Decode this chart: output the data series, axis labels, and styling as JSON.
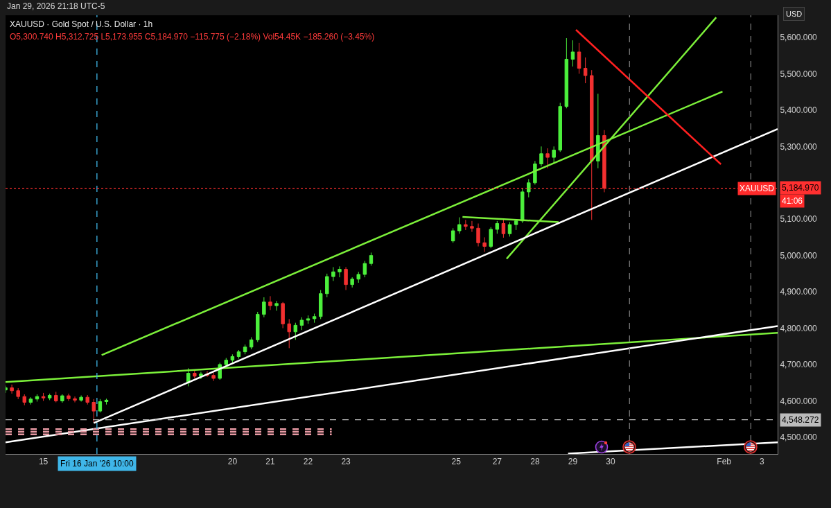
{
  "chart_data": {
    "type": "candlestick",
    "title": "XAUUSD · Gold Spot / U.S. Dollar · 1h",
    "subtitle": "O5,300.740 H5,312.725 L5,173.955 C5,184.970 −115.775 (−2.18%) Vol54.45K −185.260 (−3.45%)",
    "ylabel": "USD",
    "x": [
      "2026-01-14T00:00",
      "2026-01-14T04:00",
      "2026-01-14T08:00",
      "2026-01-14T12:00",
      "2026-01-14T16:00",
      "2026-01-14T20:00",
      "2026-01-15T00:00",
      "2026-01-15T04:00",
      "2026-01-15T08:00",
      "2026-01-15T12:00",
      "2026-01-15T16:00",
      "2026-01-15T20:00",
      "2026-01-16T00:00",
      "2026-01-16T04:00",
      "2026-01-16T08:00",
      "2026-01-16T12:00",
      "2026-01-16T16:00",
      "2026-01-18T20:00",
      "2026-01-19T00:00",
      "2026-01-19T04:00",
      "2026-01-19T08:00",
      "2026-01-19T12:00",
      "2026-01-19T16:00",
      "2026-01-19T20:00",
      "2026-01-20T00:00",
      "2026-01-20T04:00",
      "2026-01-20T08:00",
      "2026-01-20T12:00",
      "2026-01-20T16:00",
      "2026-01-20T20:00",
      "2026-01-21T00:00",
      "2026-01-21T04:00",
      "2026-01-21T08:00",
      "2026-01-21T12:00",
      "2026-01-21T16:00",
      "2026-01-21T20:00",
      "2026-01-22T00:00",
      "2026-01-22T04:00",
      "2026-01-22T08:00",
      "2026-01-22T12:00",
      "2026-01-22T16:00",
      "2026-01-22T20:00",
      "2026-01-23T00:00",
      "2026-01-23T04:00",
      "2026-01-23T08:00",
      "2026-01-23T12:00",
      "2026-01-23T16:00",
      "2026-01-25T20:00",
      "2026-01-26T00:00",
      "2026-01-26T04:00",
      "2026-01-26T08:00",
      "2026-01-26T12:00",
      "2026-01-26T16:00",
      "2026-01-26T20:00",
      "2026-01-27T00:00",
      "2026-01-27T04:00",
      "2026-01-27T08:00",
      "2026-01-27T12:00",
      "2026-01-27T16:00",
      "2026-01-27T20:00",
      "2026-01-28T00:00",
      "2026-01-28T04:00",
      "2026-01-28T08:00",
      "2026-01-28T12:00",
      "2026-01-28T16:00",
      "2026-01-28T20:00",
      "2026-01-29T00:00",
      "2026-01-29T04:00",
      "2026-01-29T08:00",
      "2026-01-29T12:00",
      "2026-01-29T16:00",
      "2026-01-29T20:00"
    ],
    "ohlc": [
      [
        4630,
        4642,
        4622,
        4636
      ],
      [
        4636,
        4645,
        4620,
        4628
      ],
      [
        4628,
        4635,
        4605,
        4612
      ],
      [
        4612,
        4618,
        4588,
        4596
      ],
      [
        4596,
        4610,
        4590,
        4605
      ],
      [
        4605,
        4618,
        4598,
        4612
      ],
      [
        4612,
        4622,
        4600,
        4608
      ],
      [
        4608,
        4620,
        4602,
        4615
      ],
      [
        4615,
        4625,
        4596,
        4600
      ],
      [
        4600,
        4618,
        4595,
        4614
      ],
      [
        4614,
        4620,
        4600,
        4606
      ],
      [
        4606,
        4612,
        4596,
        4602
      ],
      [
        4602,
        4615,
        4598,
        4610
      ],
      [
        4610,
        4616,
        4590,
        4596
      ],
      [
        4596,
        4605,
        4540,
        4572
      ],
      [
        4572,
        4605,
        4568,
        4598
      ],
      [
        4598,
        4606,
        4590,
        4602
      ],
      [
        4650,
        4690,
        4640,
        4676
      ],
      [
        4676,
        4684,
        4662,
        4668
      ],
      [
        4668,
        4680,
        4660,
        4674
      ],
      [
        4674,
        4682,
        4666,
        4670
      ],
      [
        4670,
        4678,
        4655,
        4662
      ],
      [
        4662,
        4705,
        4658,
        4700
      ],
      [
        4700,
        4718,
        4695,
        4712
      ],
      [
        4712,
        4728,
        4705,
        4722
      ],
      [
        4722,
        4740,
        4716,
        4735
      ],
      [
        4735,
        4755,
        4728,
        4748
      ],
      [
        4748,
        4775,
        4742,
        4768
      ],
      [
        4768,
        4845,
        4762,
        4838
      ],
      [
        4838,
        4885,
        4830,
        4872
      ],
      [
        4872,
        4888,
        4850,
        4862
      ],
      [
        4862,
        4875,
        4848,
        4868
      ],
      [
        4868,
        4872,
        4800,
        4812
      ],
      [
        4812,
        4825,
        4745,
        4790
      ],
      [
        4790,
        4815,
        4768,
        4808
      ],
      [
        4808,
        4830,
        4795,
        4822
      ],
      [
        4822,
        4835,
        4812,
        4826
      ],
      [
        4826,
        4840,
        4815,
        4832
      ],
      [
        4832,
        4905,
        4825,
        4895
      ],
      [
        4895,
        4950,
        4885,
        4942
      ],
      [
        4942,
        4968,
        4930,
        4955
      ],
      [
        4955,
        4970,
        4940,
        4962
      ],
      [
        4962,
        4968,
        4905,
        4920
      ],
      [
        4920,
        4940,
        4912,
        4935
      ],
      [
        4935,
        4955,
        4925,
        4948
      ],
      [
        4948,
        4985,
        4940,
        4978
      ],
      [
        4978,
        5008,
        4972,
        5000
      ],
      [
        5040,
        5075,
        5035,
        5068
      ],
      [
        5068,
        5105,
        5060,
        5085
      ],
      [
        5085,
        5098,
        5070,
        5080
      ],
      [
        5080,
        5095,
        5065,
        5075
      ],
      [
        5075,
        5088,
        5025,
        5035
      ],
      [
        5035,
        5050,
        5010,
        5025
      ],
      [
        5025,
        5078,
        5020,
        5072
      ],
      [
        5072,
        5095,
        5060,
        5088
      ],
      [
        5088,
        5100,
        5049,
        5060
      ],
      [
        5060,
        5092,
        5052,
        5085
      ],
      [
        5085,
        5100,
        5070,
        5095
      ],
      [
        5095,
        5185,
        5090,
        5175
      ],
      [
        5175,
        5210,
        5160,
        5200
      ],
      [
        5200,
        5260,
        5195,
        5252
      ],
      [
        5252,
        5300,
        5245,
        5280
      ],
      [
        5280,
        5295,
        5240,
        5270
      ],
      [
        5270,
        5300,
        5255,
        5290
      ],
      [
        5290,
        5420,
        5285,
        5410
      ],
      [
        5410,
        5598,
        5405,
        5540
      ],
      [
        5540,
        5592,
        5520,
        5560
      ],
      [
        5560,
        5585,
        5500,
        5515
      ],
      [
        5515,
        5545,
        5474,
        5495
      ],
      [
        5495,
        5510,
        5098,
        5260
      ],
      [
        5260,
        5445,
        5240,
        5330
      ],
      [
        5330,
        5345,
        5173.955,
        5184.97
      ]
    ],
    "colors": [
      "#4cf03c",
      "#f23030",
      "#f23030",
      "#f23030",
      "#4cf03c",
      "#4cf03c",
      "#f23030",
      "#4cf03c",
      "#f23030",
      "#4cf03c",
      "#f23030",
      "#f23030",
      "#4cf03c",
      "#f23030",
      "#f23030",
      "#4cf03c",
      "#4cf03c",
      "#4cf03c",
      "#f23030",
      "#4cf03c",
      "#f23030",
      "#f23030",
      "#4cf03c",
      "#4cf03c",
      "#4cf03c",
      "#4cf03c",
      "#4cf03c",
      "#4cf03c",
      "#4cf03c",
      "#4cf03c",
      "#f23030",
      "#4cf03c",
      "#f23030",
      "#f23030",
      "#4cf03c",
      "#4cf03c",
      "#4cf03c",
      "#4cf03c",
      "#4cf03c",
      "#4cf03c",
      "#4cf03c",
      "#4cf03c",
      "#f23030",
      "#4cf03c",
      "#4cf03c",
      "#4cf03c",
      "#4cf03c",
      "#4cf03c",
      "#4cf03c",
      "#f23030",
      "#f23030",
      "#f23030",
      "#f23030",
      "#4cf03c",
      "#4cf03c",
      "#f23030",
      "#4cf03c",
      "#4cf03c",
      "#4cf03c",
      "#4cf03c",
      "#4cf03c",
      "#4cf03c",
      "#f23030",
      "#4cf03c",
      "#4cf03c",
      "#4cf03c",
      "#4cf03c",
      "#f23030",
      "#f23030",
      "#f23030",
      "#4cf03c",
      "#f23030"
    ],
    "series": [
      {
        "type": "line",
        "color": "#7cf03a",
        "x": [
          "2026-01-14T00:00",
          "2026-02-03T10:00"
        ],
        "values": [
          4652,
          4787
        ]
      },
      {
        "type": "line",
        "color": "#7cf03a",
        "x": [
          "2026-01-16T13:00",
          "2026-02-01T23:00"
        ],
        "values": [
          4726,
          5451
        ]
      },
      {
        "type": "line",
        "color": "#7cf03a",
        "x": [
          "2026-01-26T02:00",
          "2026-01-28T15:00"
        ],
        "values": [
          5106,
          5092
        ]
      },
      {
        "type": "line",
        "color": "#7cf03a",
        "x": [
          "2026-01-27T06:00",
          "2026-02-01T19:00"
        ],
        "values": [
          4991,
          5655
        ]
      },
      {
        "type": "line",
        "color": "#ffffff",
        "x": [
          "2026-01-16T08:00",
          "2026-02-03T10:00"
        ],
        "values": [
          4539,
          5348
        ]
      },
      {
        "type": "line",
        "color": "#ffffff",
        "x": [
          "2026-01-14T00:00",
          "2026-02-03T10:00"
        ],
        "values": [
          4486,
          4806
        ]
      },
      {
        "type": "line",
        "color": "#ffffff",
        "x": [
          "2026-01-28T21:00",
          "2026-02-03T10:00"
        ],
        "values": [
          4455,
          4486
        ]
      },
      {
        "type": "line",
        "color": "#ff2020",
        "x": [
          "2026-01-29T02:00",
          "2026-02-01T22:00"
        ],
        "values": [
          5621,
          5251
        ]
      },
      {
        "type": "line",
        "color": "#e89aa4",
        "line_style": "dashed",
        "x": [
          "2026-01-14T00:00",
          "2026-01-22T15:00"
        ],
        "values": [
          4522,
          4522
        ]
      },
      {
        "type": "line",
        "color": "#e89aa4",
        "line_style": "dashed",
        "x": [
          "2026-01-14T00:00",
          "2026-01-22T15:00"
        ],
        "values": [
          4515,
          4515
        ]
      },
      {
        "type": "line",
        "color": "#e89aa4",
        "line_style": "dashed",
        "x": [
          "2026-01-14T00:00",
          "2026-01-22T15:00"
        ],
        "values": [
          4508,
          4508
        ]
      }
    ],
    "xlim": [
      "2026-01-14T00:00",
      "2026-02-03T10:00"
    ],
    "xticks": [
      {
        "value": "2026-01-15",
        "label": "15"
      },
      {
        "value": "2026-01-20",
        "label": "20"
      },
      {
        "value": "2026-01-21",
        "label": "21"
      },
      {
        "value": "2026-01-22",
        "label": "22"
      },
      {
        "value": "2026-01-23",
        "label": "23"
      },
      {
        "value": "2026-01-25T22:00",
        "label": "25"
      },
      {
        "value": "2026-01-27",
        "label": "27"
      },
      {
        "value": "2026-01-28",
        "label": "28"
      },
      {
        "value": "2026-01-29",
        "label": "29"
      },
      {
        "value": "2026-01-30",
        "label": "30"
      },
      {
        "value": "2026-02-02",
        "label": "Feb"
      },
      {
        "value": "2026-02-03",
        "label": "3"
      }
    ],
    "ylim": [
      4454,
      5661
    ],
    "yticks": [
      {
        "value": 4500,
        "label": "4,500.000"
      },
      {
        "value": 4600,
        "label": "4,600.000"
      },
      {
        "value": 4700,
        "label": "4,700.000"
      },
      {
        "value": 4800,
        "label": "4,800.000"
      },
      {
        "value": 4900,
        "label": "4,900.000"
      },
      {
        "value": 5000,
        "label": "5,000.000"
      },
      {
        "value": 5100,
        "label": "5,100.000"
      },
      {
        "value": 5300,
        "label": "5,300.000"
      },
      {
        "value": 5400,
        "label": "5,400.000"
      },
      {
        "value": 5500,
        "label": "5,500.000"
      },
      {
        "value": 5600,
        "label": "5,600.000"
      }
    ],
    "ref_lines": [
      {
        "axis": "x",
        "value": "2026-01-16T10:00",
        "label": "Fri 16 Jan '26 10:00",
        "color": "#3fb6e8",
        "line_style": "dashed"
      },
      {
        "axis": "x",
        "value": "2026-01-30T12:00",
        "color": "#777777",
        "line_style": "dashed"
      },
      {
        "axis": "x",
        "value": "2026-02-02T17:00",
        "color": "#777777",
        "line_style": "dashed"
      },
      {
        "axis": "y",
        "value": 4548.272,
        "label": "4,548.272",
        "color": "#bbbbbb",
        "line_style": "dashed"
      },
      {
        "axis": "y",
        "value": 5184.97,
        "label": "5,184.970",
        "color": "#ff3030",
        "line_style": "dotted"
      }
    ],
    "annotations": [
      "Jan 29, 2026 21:18 UTC-5",
      {
        "text": "XAUUSD",
        "y": 5184.97
      },
      "41:06"
    ],
    "grid": false
  }
}
